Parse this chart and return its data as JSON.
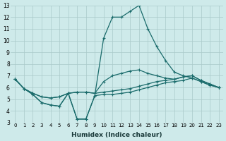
{
  "xlabel": "Humidex (Indice chaleur)",
  "bg_color": "#ceeaea",
  "grid_color": "#aacaca",
  "line_color": "#1a6b6b",
  "xlim": [
    -0.5,
    23.5
  ],
  "ylim": [
    3,
    13
  ],
  "xticks": [
    0,
    1,
    2,
    3,
    4,
    5,
    6,
    7,
    8,
    9,
    10,
    11,
    12,
    13,
    14,
    15,
    16,
    17,
    18,
    19,
    20,
    21,
    22,
    23
  ],
  "yticks": [
    3,
    4,
    5,
    6,
    7,
    8,
    9,
    10,
    11,
    12,
    13
  ],
  "series": [
    [
      6.7,
      5.9,
      5.4,
      4.7,
      4.5,
      4.4,
      5.5,
      3.3,
      3.3,
      5.3,
      5.4,
      5.4,
      5.5,
      5.6,
      5.8,
      6.0,
      6.2,
      6.4,
      6.5,
      6.6,
      6.8,
      6.5,
      6.2,
      6.0
    ],
    [
      6.7,
      5.9,
      5.5,
      5.2,
      5.1,
      5.2,
      5.5,
      5.6,
      5.6,
      5.5,
      5.6,
      5.7,
      5.8,
      5.9,
      6.1,
      6.3,
      6.5,
      6.6,
      6.7,
      6.9,
      7.0,
      6.6,
      6.3,
      6.0
    ],
    [
      6.7,
      5.9,
      5.5,
      5.2,
      5.1,
      5.2,
      5.5,
      5.6,
      5.6,
      5.5,
      6.5,
      7.0,
      7.2,
      7.4,
      7.5,
      7.2,
      7.0,
      6.8,
      6.7,
      6.9,
      7.0,
      6.6,
      6.3,
      6.0
    ],
    [
      6.7,
      5.9,
      5.4,
      4.7,
      4.5,
      4.4,
      5.5,
      3.3,
      3.3,
      5.3,
      10.2,
      12.0,
      12.0,
      12.5,
      13.0,
      11.0,
      9.5,
      8.3,
      7.3,
      7.0,
      6.8,
      6.5,
      6.2,
      6.0
    ]
  ]
}
